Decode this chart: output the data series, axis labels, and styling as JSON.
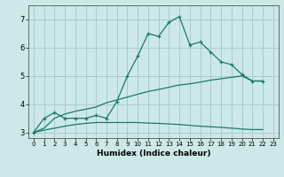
{
  "xlabel": "Humidex (Indice chaleur)",
  "background_color": "#cce8e8",
  "grid_color": "#aacccc",
  "line_color": "#1a7a6a",
  "xlim": [
    -0.5,
    23.5
  ],
  "ylim": [
    2.8,
    7.5
  ],
  "xticks": [
    0,
    1,
    2,
    3,
    4,
    5,
    6,
    7,
    8,
    9,
    10,
    11,
    12,
    13,
    14,
    15,
    16,
    17,
    18,
    19,
    20,
    21,
    22,
    23
  ],
  "yticks": [
    3,
    4,
    5,
    6,
    7
  ],
  "curve1_x": [
    0,
    1,
    2,
    3,
    4,
    5,
    6,
    7,
    8,
    9,
    10,
    11,
    12,
    13,
    14,
    15,
    16,
    17,
    18,
    19,
    20,
    21,
    22
  ],
  "curve1_y": [
    3.0,
    3.5,
    3.7,
    3.5,
    3.5,
    3.5,
    3.6,
    3.5,
    4.1,
    5.0,
    5.7,
    6.5,
    6.4,
    6.9,
    7.1,
    6.1,
    6.2,
    5.85,
    5.5,
    5.4,
    5.05,
    4.82,
    4.82
  ],
  "curve2_x": [
    0,
    1,
    2,
    3,
    4,
    5,
    6,
    7,
    8,
    9,
    10,
    11,
    12,
    13,
    14,
    15,
    16,
    17,
    18,
    19,
    20,
    21,
    22
  ],
  "curve2_y": [
    3.0,
    3.15,
    3.5,
    3.65,
    3.75,
    3.82,
    3.9,
    4.05,
    4.15,
    4.25,
    4.35,
    4.45,
    4.52,
    4.6,
    4.68,
    4.72,
    4.78,
    4.85,
    4.9,
    4.95,
    5.0,
    4.82,
    4.82
  ],
  "curve3_x": [
    0,
    1,
    2,
    3,
    4,
    5,
    6,
    7,
    8,
    9,
    10,
    11,
    12,
    13,
    14,
    15,
    16,
    17,
    18,
    19,
    20,
    21,
    22
  ],
  "curve3_y": [
    3.0,
    3.08,
    3.15,
    3.22,
    3.28,
    3.32,
    3.35,
    3.35,
    3.35,
    3.35,
    3.35,
    3.33,
    3.32,
    3.3,
    3.28,
    3.25,
    3.22,
    3.2,
    3.18,
    3.15,
    3.12,
    3.1,
    3.1
  ]
}
